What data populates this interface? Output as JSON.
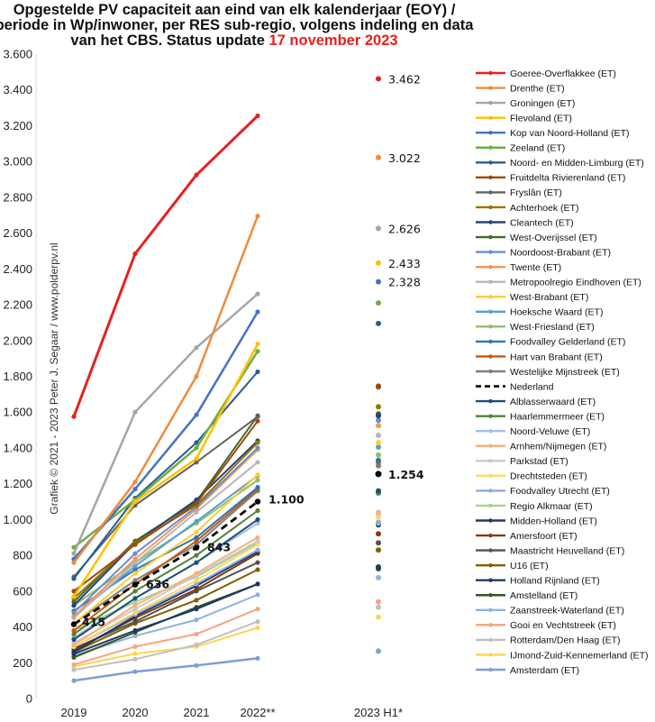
{
  "chart_data": {
    "type": "line",
    "title_lines": [
      "Opgestelde PV capaciteit aan eind van elk kalenderjaar (EOY) /",
      "periode in Wp/inwoner, per RES sub-regio, volgens indeling  en data"
    ],
    "title_line3": "van het CBS. Status update ",
    "title_date": "17 november 2023",
    "title_date_color": "#e8201e",
    "credit": "Grafiek © 2021 - 2023 Peter J. Segaar / www.polderpv.nl",
    "categories": [
      "2019",
      "2020",
      "2021",
      "2022**"
    ],
    "extra_category": "2023 H1*",
    "ylim": [
      0,
      3600
    ],
    "yticks": [
      0,
      200,
      400,
      600,
      800,
      1000,
      1200,
      1400,
      1600,
      1800,
      2000,
      2200,
      2400,
      2600,
      2800,
      3000,
      3200,
      3400,
      3600
    ],
    "ytick_labels": [
      "0",
      "200",
      "400",
      "600",
      "800",
      "1.000",
      "1.200",
      "1.400",
      "1.600",
      "1.800",
      "2.000",
      "2.200",
      "2.400",
      "2.600",
      "2.800",
      "3.000",
      "3.200",
      "3.400",
      "3.600"
    ],
    "grid": false,
    "legend_position": "right",
    "series": [
      {
        "name": "Goeree-Overflakkee (ET)",
        "color": "#e8201e",
        "width": 3,
        "values": [
          1575,
          2485,
          2925,
          3255
        ],
        "h1": 3462,
        "h1_label": "3.462"
      },
      {
        "name": "Drenthe (ET)",
        "color": "#ef8b3c",
        "width": 2.5,
        "values": [
          760,
          1210,
          1800,
          2695
        ],
        "h1": 3022,
        "h1_label": "3.022"
      },
      {
        "name": "Groningen (ET)",
        "color": "#a5a5a5",
        "width": 2.5,
        "values": [
          810,
          1600,
          1960,
          2260
        ],
        "h1": 2626,
        "h1_label": "2.626"
      },
      {
        "name": "Flevoland (ET)",
        "color": "#ffc000",
        "width": 2.5,
        "values": [
          570,
          1100,
          1340,
          1980
        ],
        "h1": 2433,
        "h1_label": "2.433"
      },
      {
        "name": "Kop van Noord-Holland (ET)",
        "color": "#4472c4",
        "width": 2.5,
        "values": [
          780,
          1170,
          1585,
          2160
        ],
        "h1": 2328,
        "h1_label": "2.328"
      },
      {
        "name": "Zeeland (ET)",
        "color": "#70ad47",
        "width": 2.5,
        "values": [
          845,
          1110,
          1400,
          1940
        ],
        "h1": 2210
      },
      {
        "name": "Noord- en Midden-Limburg (ET)",
        "color": "#255e91",
        "width": 2,
        "values": [
          670,
          1120,
          1430,
          1825
        ],
        "h1": 2095
      },
      {
        "name": "Fruitdelta Rivierenland (ET)",
        "color": "#9e480e",
        "width": 2,
        "values": [
          600,
          860,
          1090,
          1550
        ],
        "h1": 1745
      },
      {
        "name": "Fryslân (ET)",
        "color": "#636363",
        "width": 2,
        "values": [
          680,
          1080,
          1320,
          1575
        ],
        "h1": 1740
      },
      {
        "name": "Achterhoek (ET)",
        "color": "#997300",
        "width": 2,
        "values": [
          560,
          870,
          1080,
          1430
        ],
        "h1": 1630
      },
      {
        "name": "Cleantech (ET)",
        "color": "#264478",
        "width": 2,
        "values": [
          520,
          870,
          1110,
          1440
        ],
        "h1": 1580
      },
      {
        "name": "West-Overijssel (ET)",
        "color": "#43682b",
        "width": 2,
        "values": [
          540,
          880,
          1100,
          1580
        ],
        "h1": 1590
      },
      {
        "name": "Noordoost-Brabant (ET)",
        "color": "#698ed0",
        "width": 2,
        "values": [
          480,
          810,
          1070,
          1400
        ],
        "h1": 1555
      },
      {
        "name": "Twente (ET)",
        "color": "#f1975a",
        "width": 2,
        "values": [
          460,
          780,
          1060,
          1390
        ],
        "h1": 1525
      },
      {
        "name": "Metropoolregio Eindhoven (ET)",
        "color": "#b7b7b7",
        "width": 2,
        "values": [
          450,
          760,
          1040,
          1320
        ],
        "h1": 1470
      },
      {
        "name": "West-Brabant (ET)",
        "color": "#ffcd33",
        "width": 2,
        "values": [
          420,
          700,
          930,
          1250
        ],
        "h1": 1430
      },
      {
        "name": "Hoeksche Waard (ET)",
        "color": "#5b9bd5",
        "width": 2,
        "values": [
          460,
          740,
          990,
          1245
        ],
        "h1": 1405
      },
      {
        "name": "West-Friesland (ET)",
        "color": "#8cc168",
        "width": 2,
        "values": [
          520,
          760,
          980,
          1220
        ],
        "h1": 1360
      },
      {
        "name": "Foodvalley Gelderland (ET)",
        "color": "#2e75b6",
        "width": 2,
        "values": [
          490,
          720,
          900,
          1180
        ],
        "h1": 1330
      },
      {
        "name": "Hart van Brabant (ET)",
        "color": "#c55a11",
        "width": 2,
        "values": [
          380,
          640,
          880,
          1170
        ],
        "h1": 1320
      },
      {
        "name": "Westelijke Mijnstreek (ET)",
        "color": "#7f7f7f",
        "width": 2,
        "values": [
          420,
          660,
          860,
          1160
        ],
        "h1": 1300
      },
      {
        "name": "Nederland",
        "color": "#000000",
        "width": 2.8,
        "dash": "8,5",
        "values": [
          415,
          636,
          843,
          1100
        ],
        "h1": 1254,
        "value_labels": [
          "415",
          "636",
          "843",
          "1.100"
        ],
        "h1_label": "1.254"
      },
      {
        "name": "Alblasserwaard (ET)",
        "color": "#1f4e79",
        "width": 2,
        "values": [
          330,
          560,
          760,
          1000
        ],
        "h1": 1160
      },
      {
        "name": "Haarlemmermeer (ET)",
        "color": "#548235",
        "width": 2,
        "values": [
          360,
          600,
          800,
          1050
        ],
        "h1": 1150
      },
      {
        "name": "Noord-Veluwe (ET)",
        "color": "#9dc3e6",
        "width": 2,
        "values": [
          340,
          560,
          760,
          980
        ],
        "h1": 1145
      },
      {
        "name": "Arnhem/Nijmegen (ET)",
        "color": "#f4b183",
        "width": 2,
        "values": [
          300,
          520,
          700,
          900
        ],
        "h1": 1040
      },
      {
        "name": "Parkstad (ET)",
        "color": "#c9c9c9",
        "width": 2,
        "values": [
          310,
          500,
          690,
          880
        ],
        "h1": 1030
      },
      {
        "name": "Drechtsteden (ET)",
        "color": "#ffd966",
        "width": 2,
        "values": [
          290,
          480,
          660,
          860
        ],
        "h1": 1010
      },
      {
        "name": "Foodvalley Utrecht (ET)",
        "color": "#8faadc",
        "width": 2,
        "values": [
          290,
          470,
          640,
          830
        ],
        "h1": 985
      },
      {
        "name": "Regio Alkmaar (ET)",
        "color": "#a9d18e",
        "width": 2,
        "values": [
          380,
          540,
          680,
          870
        ],
        "h1": 980
      },
      {
        "name": "Midden-Holland (ET)",
        "color": "#203864",
        "width": 2,
        "values": [
          260,
          460,
          630,
          820
        ],
        "h1": 970
      },
      {
        "name": "Amersfoort (ET)",
        "color": "#843c0c",
        "width": 2,
        "values": [
          270,
          450,
          610,
          810
        ],
        "h1": 920
      },
      {
        "name": "Maastricht Heuvelland (ET)",
        "color": "#525252",
        "width": 2,
        "values": [
          280,
          430,
          600,
          760
        ],
        "h1": 870
      },
      {
        "name": "U16 (ET)",
        "color": "#7f6000",
        "width": 2,
        "values": [
          260,
          420,
          550,
          720
        ],
        "h1": 830
      },
      {
        "name": "Holland Rijnland (ET)",
        "color": "#1f3864",
        "width": 2,
        "values": [
          250,
          380,
          500,
          640
        ],
        "h1": 735
      },
      {
        "name": "Amstelland (ET)",
        "color": "#385723",
        "width": 2,
        "values": [
          230,
          370,
          510,
          640
        ],
        "h1": 725
      },
      {
        "name": "Zaanstreek-Waterland (ET)",
        "color": "#8eb4e3",
        "width": 2,
        "values": [
          240,
          350,
          440,
          580
        ],
        "h1": 675
      },
      {
        "name": "Gooi en Vechtstreek (ET)",
        "color": "#f4a582",
        "width": 2,
        "values": [
          190,
          290,
          360,
          500
        ],
        "h1": 540
      },
      {
        "name": "Rotterdam/Den Haag (ET)",
        "color": "#c0c0c0",
        "width": 2,
        "values": [
          160,
          220,
          300,
          430
        ],
        "h1": 510
      },
      {
        "name": "IJmond-Zuid-Kennemerland (ET)",
        "color": "#ffd54f",
        "width": 2,
        "values": [
          180,
          250,
          290,
          395
        ],
        "h1": 455
      },
      {
        "name": "Amsterdam (ET)",
        "color": "#7f9fd4",
        "width": 2.5,
        "values": [
          100,
          150,
          185,
          225
        ],
        "h1": 265
      }
    ]
  }
}
